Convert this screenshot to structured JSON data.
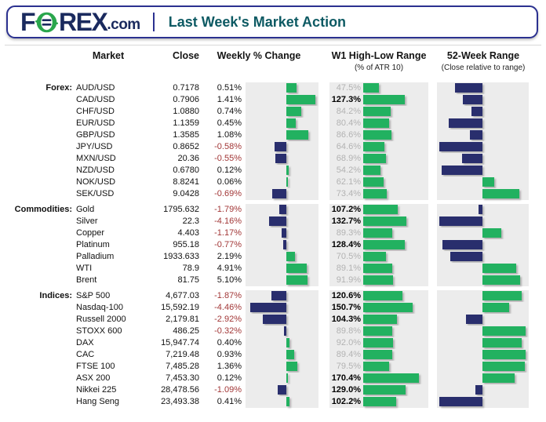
{
  "header": {
    "logo_f": "F",
    "logo_rex": "REX",
    "logo_tld": ".com",
    "title": "Last Week's Market Action"
  },
  "columns": {
    "market": "Market",
    "close": "Close",
    "weekly": "Weekly % Change",
    "w1": "W1 High-Low Range",
    "w1_sub": "(% of ATR 10)",
    "w52": "52-Week Range",
    "w52_sub": "(Close relative to range)"
  },
  "colors": {
    "positive_bar_green": "#22b160",
    "negative_bar_navy": "#292e6d",
    "negative_text_red": "#a23737",
    "muted_value_gray": "#b2b2b2",
    "chart_cell_bg": "#ececec",
    "brand_navy": "#1a2a5e",
    "brand_green": "#2aa64c",
    "border_navy": "#2b3190",
    "title_teal": "#0d5a63"
  },
  "chart_data": {
    "type": "table",
    "title": "Last Week's Market Action",
    "notes": "Bars per row: weekly % change (diverging, axis centered), W1 high-low range as % of ATR10 (0-200% scale), and close position within 52-week range (axis = 50%, estimated from bar lengths)",
    "w1_bar_scale_max_pct": 200,
    "w52_axis_pct": 50,
    "sections": [
      {
        "label": "Forex:",
        "weekly_axis_max_pct": 2,
        "rows": [
          {
            "market": "AUD/USD",
            "close": "0.7178",
            "weekly": "0.51%",
            "weekly_pct": 0.51,
            "w1": "47.5%",
            "w1_pct": 47.5,
            "w52_close_pos_pct": 19
          },
          {
            "market": "CAD/USD",
            "close": "0.7906",
            "weekly": "1.41%",
            "weekly_pct": 1.41,
            "w1": "127.3%",
            "w1_pct": 127.3,
            "w52_close_pos_pct": 28
          },
          {
            "market": "CHF/USD",
            "close": "1.0880",
            "weekly": "0.74%",
            "weekly_pct": 0.74,
            "w1": "84.2%",
            "w1_pct": 84.2,
            "w52_close_pos_pct": 38
          },
          {
            "market": "EUR/USD",
            "close": "1.1359",
            "weekly": "0.45%",
            "weekly_pct": 0.45,
            "w1": "80.4%",
            "w1_pct": 80.4,
            "w52_close_pos_pct": 12
          },
          {
            "market": "GBP/USD",
            "close": "1.3585",
            "weekly": "1.08%",
            "weekly_pct": 1.08,
            "w1": "86.6%",
            "w1_pct": 86.6,
            "w52_close_pos_pct": 36
          },
          {
            "market": "JPY/USD",
            "close": "0.8652",
            "weekly": "-0.58%",
            "weekly_pct": -0.58,
            "w1": "64.6%",
            "w1_pct": 64.6,
            "w52_close_pos_pct": 2
          },
          {
            "market": "MXN/USD",
            "close": "20.36",
            "weekly": "-0.55%",
            "weekly_pct": -0.55,
            "w1": "68.9%",
            "w1_pct": 68.9,
            "w52_close_pos_pct": 27
          },
          {
            "market": "NZD/USD",
            "close": "0.6780",
            "weekly": "0.12%",
            "weekly_pct": 0.12,
            "w1": "54.2%",
            "w1_pct": 54.2,
            "w52_close_pos_pct": 4
          },
          {
            "market": "NOK/USD",
            "close": "8.8241",
            "weekly": "0.06%",
            "weekly_pct": 0.06,
            "w1": "62.1%",
            "w1_pct": 62.1,
            "w52_close_pos_pct": 63
          },
          {
            "market": "SEK/USD",
            "close": "9.0428",
            "weekly": "-0.69%",
            "weekly_pct": -0.69,
            "w1": "73.4%",
            "w1_pct": 73.4,
            "w52_close_pos_pct": 91
          }
        ]
      },
      {
        "label": "Commodities:",
        "weekly_axis_max_pct": 10,
        "rows": [
          {
            "market": "Gold",
            "close": "1795.632",
            "weekly": "-1.79%",
            "weekly_pct": -1.79,
            "w1": "107.2%",
            "w1_pct": 107.2,
            "w52_close_pos_pct": 46
          },
          {
            "market": "Silver",
            "close": "22.3",
            "weekly": "-4.16%",
            "weekly_pct": -4.16,
            "w1": "132.7%",
            "w1_pct": 132.7,
            "w52_close_pos_pct": 2
          },
          {
            "market": "Copper",
            "close": "4.403",
            "weekly": "-1.17%",
            "weekly_pct": -1.17,
            "w1": "89.3%",
            "w1_pct": 89.3,
            "w52_close_pos_pct": 71
          },
          {
            "market": "Platinum",
            "close": "955.18",
            "weekly": "-0.77%",
            "weekly_pct": -0.77,
            "w1": "128.4%",
            "w1_pct": 128.4,
            "w52_close_pos_pct": 5
          },
          {
            "market": "Palladium",
            "close": "1933.633",
            "weekly": "2.19%",
            "weekly_pct": 2.19,
            "w1": "70.5%",
            "w1_pct": 70.5,
            "w52_close_pos_pct": 14
          },
          {
            "market": "WTI",
            "close": "78.9",
            "weekly": "4.91%",
            "weekly_pct": 4.91,
            "w1": "89.1%",
            "w1_pct": 89.1,
            "w52_close_pos_pct": 88
          },
          {
            "market": "Brent",
            "close": "81.75",
            "weekly": "5.10%",
            "weekly_pct": 5.1,
            "w1": "91.9%",
            "w1_pct": 91.9,
            "w52_close_pos_pct": 92
          }
        ]
      },
      {
        "label": "Indices:",
        "weekly_axis_max_pct": 5,
        "rows": [
          {
            "market": "S&P 500",
            "close": "4,677.03",
            "weekly": "-1.87%",
            "weekly_pct": -1.87,
            "w1": "120.6%",
            "w1_pct": 120.6,
            "w52_close_pos_pct": 94
          },
          {
            "market": "Nasdaq-100",
            "close": "15,592.19",
            "weekly": "-4.46%",
            "weekly_pct": -4.46,
            "w1": "150.7%",
            "w1_pct": 150.7,
            "w52_close_pos_pct": 80
          },
          {
            "market": "Russell 2000",
            "close": "2,179.81",
            "weekly": "-2.92%",
            "weekly_pct": -2.92,
            "w1": "104.3%",
            "w1_pct": 104.3,
            "w52_close_pos_pct": 32
          },
          {
            "market": "STOXX 600",
            "close": "486.25",
            "weekly": "-0.32%",
            "weekly_pct": -0.32,
            "w1": "89.8%",
            "w1_pct": 89.8,
            "w52_close_pos_pct": 98
          },
          {
            "market": "DAX",
            "close": "15,947.74",
            "weekly": "0.40%",
            "weekly_pct": 0.4,
            "w1": "92.0%",
            "w1_pct": 92.0,
            "w52_close_pos_pct": 94
          },
          {
            "market": "CAC",
            "close": "7,219.48",
            "weekly": "0.93%",
            "weekly_pct": 0.93,
            "w1": "89.4%",
            "w1_pct": 89.4,
            "w52_close_pos_pct": 98
          },
          {
            "market": "FTSE 100",
            "close": "7,485.28",
            "weekly": "1.36%",
            "weekly_pct": 1.36,
            "w1": "79.5%",
            "w1_pct": 79.5,
            "w52_close_pos_pct": 97
          },
          {
            "market": "ASX 200",
            "close": "7,453.30",
            "weekly": "0.12%",
            "weekly_pct": 0.12,
            "w1": "170.4%",
            "w1_pct": 170.4,
            "w52_close_pos_pct": 86
          },
          {
            "market": "Nikkei 225",
            "close": "28,478.56",
            "weekly": "-1.09%",
            "weekly_pct": -1.09,
            "w1": "129.0%",
            "w1_pct": 129.0,
            "w52_close_pos_pct": 42
          },
          {
            "market": "Hang Seng",
            "close": "23,493.38",
            "weekly": "0.41%",
            "weekly_pct": 0.41,
            "w1": "102.2%",
            "w1_pct": 102.2,
            "w52_close_pos_pct": 2
          }
        ]
      }
    ]
  }
}
